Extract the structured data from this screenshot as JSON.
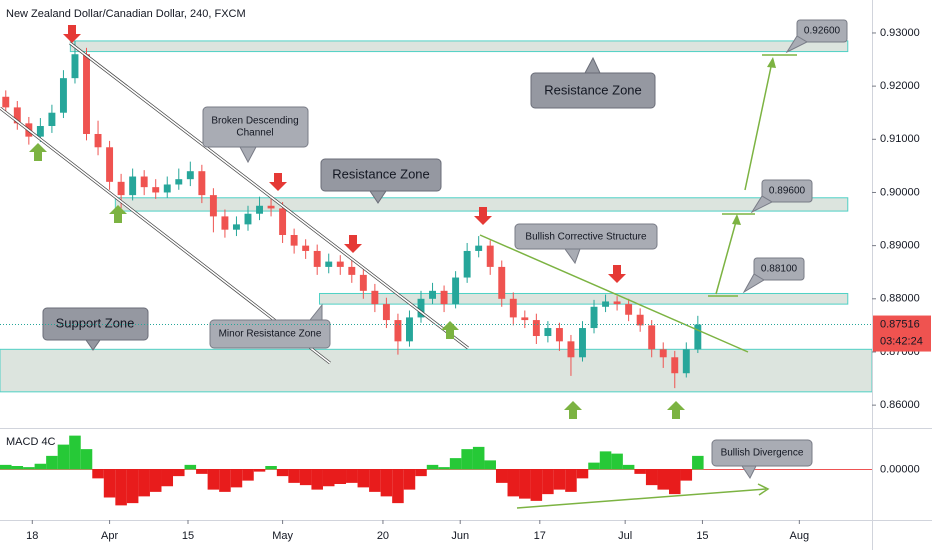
{
  "chart_data": {
    "type": "candlestick",
    "title": "New Zealand Dollar/Canadian Dollar, 240, FXCM",
    "ylim": [
      0.8557,
      0.9362
    ],
    "yticks": [
      {
        "value": 0.93,
        "label": "0.93000"
      },
      {
        "value": 0.92,
        "label": "0.92000"
      },
      {
        "value": 0.91,
        "label": "0.91000"
      },
      {
        "value": 0.9,
        "label": "0.90000"
      },
      {
        "value": 0.89,
        "label": "0.89000"
      },
      {
        "value": 0.88,
        "label": "0.88000"
      },
      {
        "value": 0.87,
        "label": "0.87000"
      },
      {
        "value": 0.86,
        "label": "0.86000"
      }
    ],
    "xlim": [
      0,
      75.6
    ],
    "xticks": [
      {
        "value": 2.8,
        "label": "18"
      },
      {
        "value": 9.5,
        "label": "Apr"
      },
      {
        "value": 16.3,
        "label": "15"
      },
      {
        "value": 24.5,
        "label": "May"
      },
      {
        "value": 33.2,
        "label": "20"
      },
      {
        "value": 39.9,
        "label": "Jun"
      },
      {
        "value": 46.8,
        "label": "17"
      },
      {
        "value": 54.2,
        "label": "Jul"
      },
      {
        "value": 60.9,
        "label": "15"
      },
      {
        "value": 69.3,
        "label": "Aug"
      }
    ],
    "up_color": "#26a69a",
    "down_color": "#ef5350",
    "ohlc": [
      [
        0.918,
        0.9192,
        0.9148,
        0.916
      ],
      [
        0.916,
        0.9172,
        0.9118,
        0.913
      ],
      [
        0.913,
        0.9142,
        0.909,
        0.9105
      ],
      [
        0.9105,
        0.914,
        0.9095,
        0.9125
      ],
      [
        0.9125,
        0.9165,
        0.9112,
        0.915
      ],
      [
        0.915,
        0.923,
        0.914,
        0.9215
      ],
      [
        0.9215,
        0.9285,
        0.9205,
        0.926
      ],
      [
        0.926,
        0.9272,
        0.9098,
        0.911
      ],
      [
        0.911,
        0.9135,
        0.907,
        0.9085
      ],
      [
        0.9085,
        0.9097,
        0.9005,
        0.902
      ],
      [
        0.902,
        0.9035,
        0.897,
        0.8995
      ],
      [
        0.8995,
        0.9045,
        0.8985,
        0.903
      ],
      [
        0.903,
        0.9042,
        0.8995,
        0.901
      ],
      [
        0.901,
        0.9025,
        0.8988,
        0.9
      ],
      [
        0.9,
        0.903,
        0.899,
        0.9015
      ],
      [
        0.9015,
        0.9045,
        0.9005,
        0.9025
      ],
      [
        0.9025,
        0.9058,
        0.9012,
        0.904
      ],
      [
        0.904,
        0.9052,
        0.898,
        0.8995
      ],
      [
        0.8995,
        0.9008,
        0.8925,
        0.8955
      ],
      [
        0.8955,
        0.8968,
        0.8915,
        0.893
      ],
      [
        0.893,
        0.8955,
        0.8918,
        0.894
      ],
      [
        0.894,
        0.8975,
        0.8928,
        0.896
      ],
      [
        0.896,
        0.8992,
        0.8948,
        0.8975
      ],
      [
        0.8975,
        0.8988,
        0.8955,
        0.897
      ],
      [
        0.897,
        0.8982,
        0.8905,
        0.892
      ],
      [
        0.892,
        0.8932,
        0.8885,
        0.89
      ],
      [
        0.89,
        0.8912,
        0.8875,
        0.889
      ],
      [
        0.889,
        0.8902,
        0.8845,
        0.886
      ],
      [
        0.886,
        0.8885,
        0.8848,
        0.887
      ],
      [
        0.887,
        0.8882,
        0.8845,
        0.886
      ],
      [
        0.886,
        0.8872,
        0.883,
        0.8845
      ],
      [
        0.8845,
        0.8855,
        0.88,
        0.8815
      ],
      [
        0.8815,
        0.8828,
        0.8775,
        0.879
      ],
      [
        0.879,
        0.8802,
        0.8745,
        0.876
      ],
      [
        0.876,
        0.8772,
        0.8695,
        0.872
      ],
      [
        0.872,
        0.8778,
        0.871,
        0.8765
      ],
      [
        0.8765,
        0.8815,
        0.8755,
        0.88
      ],
      [
        0.88,
        0.883,
        0.879,
        0.8815
      ],
      [
        0.8815,
        0.8825,
        0.8775,
        0.879
      ],
      [
        0.879,
        0.8852,
        0.8782,
        0.884
      ],
      [
        0.884,
        0.8905,
        0.883,
        0.889
      ],
      [
        0.889,
        0.8918,
        0.8878,
        0.89
      ],
      [
        0.89,
        0.891,
        0.8845,
        0.886
      ],
      [
        0.886,
        0.8872,
        0.8785,
        0.88
      ],
      [
        0.88,
        0.8812,
        0.875,
        0.8765
      ],
      [
        0.8765,
        0.8778,
        0.8745,
        0.876
      ],
      [
        0.876,
        0.8772,
        0.8715,
        0.873
      ],
      [
        0.873,
        0.8758,
        0.8718,
        0.8745
      ],
      [
        0.8745,
        0.8755,
        0.8702,
        0.872
      ],
      [
        0.872,
        0.8732,
        0.8655,
        0.869
      ],
      [
        0.869,
        0.8758,
        0.8682,
        0.8745
      ],
      [
        0.8745,
        0.8798,
        0.8735,
        0.8785
      ],
      [
        0.8785,
        0.8808,
        0.8775,
        0.8795
      ],
      [
        0.8795,
        0.8805,
        0.8778,
        0.879
      ],
      [
        0.879,
        0.88,
        0.8758,
        0.877
      ],
      [
        0.877,
        0.8782,
        0.8738,
        0.875
      ],
      [
        0.875,
        0.876,
        0.869,
        0.8705
      ],
      [
        0.8705,
        0.8718,
        0.867,
        0.869
      ],
      [
        0.869,
        0.8702,
        0.8632,
        0.866
      ],
      [
        0.866,
        0.8718,
        0.8652,
        0.8705
      ],
      [
        0.8705,
        0.8768,
        0.8698,
        0.87516
      ]
    ],
    "last_price": 0.87516,
    "countdown": "03:42:24",
    "zones": [
      {
        "top": 0.9285,
        "bottom": 0.9265,
        "start": 6.1,
        "end": 73.5
      },
      {
        "top": 0.899,
        "bottom": 0.8965,
        "start": 10.0,
        "end": 73.5
      },
      {
        "top": 0.881,
        "bottom": 0.879,
        "start": 27.7,
        "end": 73.5
      },
      {
        "top": 0.8705,
        "bottom": 0.8625,
        "start": 0,
        "end": 75.6
      }
    ],
    "callouts": [
      "Resistance Zone",
      "Resistance Zone",
      "Bullish Corrective Structure",
      "Support Zone",
      "Minor Resistance Zone",
      "0.92600",
      "0.89600",
      "0.88100",
      "Bullish Divergence"
    ],
    "channel_callout": [
      "Broken Descending",
      "Channel"
    ],
    "macd": {
      "title": "MACD 4C",
      "ylim": [
        -0.0045,
        0.0035
      ],
      "yticks": [
        {
          "value": 0,
          "label": "0.00000"
        }
      ],
      "up_color": "#26c937",
      "down_color": "#e81c1c",
      "values": [
        0.0004,
        0.0003,
        0.0002,
        0.0005,
        0.0012,
        0.0022,
        0.003,
        0.0018,
        -0.0008,
        -0.0025,
        -0.0032,
        -0.003,
        -0.0024,
        -0.002,
        -0.0015,
        -0.0006,
        0.0004,
        -0.0004,
        -0.0018,
        -0.002,
        -0.0016,
        -0.001,
        -0.0002,
        0.0003,
        -0.0006,
        -0.0012,
        -0.0014,
        -0.0018,
        -0.0015,
        -0.0013,
        -0.0012,
        -0.0016,
        -0.002,
        -0.0024,
        -0.003,
        -0.0018,
        -0.0006,
        0.0004,
        0.0002,
        0.001,
        0.0018,
        0.002,
        0.0008,
        -0.0012,
        -0.0024,
        -0.0026,
        -0.0028,
        -0.0022,
        -0.0018,
        -0.002,
        -0.0008,
        0.0006,
        0.0016,
        0.0014,
        0.0004,
        -0.0004,
        -0.0014,
        -0.0018,
        -0.0022,
        -0.001,
        0.0012
      ]
    }
  }
}
